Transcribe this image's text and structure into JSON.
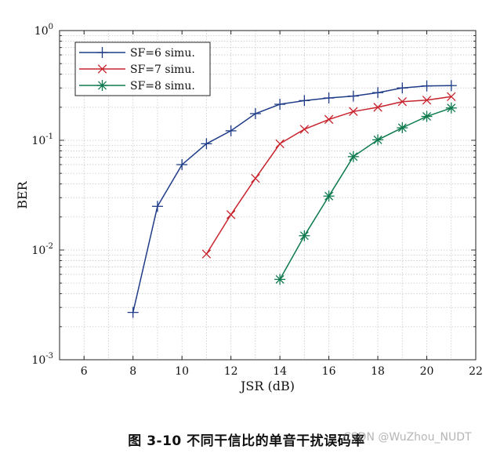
{
  "chart_data": {
    "type": "line",
    "xlabel": "JSR (dB)",
    "ylabel": "BER",
    "xlim": [
      5,
      22
    ],
    "ylim": [
      0.001,
      1
    ],
    "yscale": "log",
    "grid": true,
    "legend_position": "top-left",
    "x_ticks": [
      "6",
      "8",
      "10",
      "12",
      "14",
      "16",
      "18",
      "20",
      "22"
    ],
    "y_ticks": [
      {
        "base": "10",
        "exp": "0",
        "value": 1
      },
      {
        "base": "10",
        "exp": "-1",
        "value": 0.1
      },
      {
        "base": "10",
        "exp": "-2",
        "value": 0.01
      },
      {
        "base": "10",
        "exp": "-3",
        "value": 0.001
      }
    ],
    "series": [
      {
        "name": "SF=6 simu.",
        "color": "#1f3c88",
        "marker": "plus",
        "x": [
          8,
          9,
          10,
          11,
          12,
          13,
          14,
          15,
          16,
          17,
          18,
          19,
          20,
          21
        ],
        "y": [
          0.0027,
          0.025,
          0.06,
          0.093,
          0.122,
          0.175,
          0.213,
          0.23,
          0.243,
          0.253,
          0.272,
          0.3,
          0.313,
          0.315
        ]
      },
      {
        "name": "SF=7 simu.",
        "color": "#c8232c",
        "marker": "cross",
        "x": [
          11,
          12,
          13,
          14,
          15,
          16,
          17,
          18,
          19,
          20,
          21
        ],
        "y": [
          0.0092,
          0.021,
          0.045,
          0.093,
          0.126,
          0.155,
          0.183,
          0.2,
          0.225,
          0.232,
          0.25
        ]
      },
      {
        "name": "SF=8 simu.",
        "color": "#0e7a4e",
        "marker": "star",
        "x": [
          14,
          15,
          16,
          17,
          18,
          19,
          20,
          21
        ],
        "y": [
          0.0054,
          0.0135,
          0.031,
          0.071,
          0.101,
          0.13,
          0.165,
          0.197
        ]
      }
    ]
  },
  "caption": "图 3-10 不同干信比的单音干扰误码率",
  "watermark": "CSDN @WuZhou_NUDT"
}
